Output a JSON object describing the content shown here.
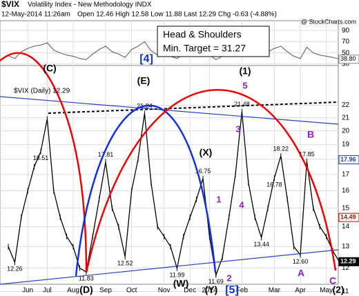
{
  "header": {
    "symbol": "$VIX",
    "name": "Volatility Index - New Methodology INDX",
    "date": "12-May-2014 11:26am",
    "quote": "Open 12.46 High 12.58 Low 11.88 Last 12.29 Chg -0.63 (-4.88%)",
    "source": "@ StockCharts.com",
    "legend": "$VIX (Daily) 12.29",
    "box": [
      "Head & Shoulders",
      "Min. Target = 31.27"
    ]
  },
  "chart_data": {
    "type": "line",
    "log_scale": true,
    "grid": true,
    "color": "#000000",
    "categories": [
      null,
      null,
      null,
      "Jun",
      null,
      null,
      "Jul",
      null,
      null,
      null,
      "Aug",
      null,
      null,
      null,
      null,
      "Sep",
      null,
      null,
      null,
      "Oct",
      null,
      null,
      null,
      null,
      "Nov",
      null,
      null,
      null,
      "Dec",
      null,
      null,
      "2014",
      null,
      null,
      null,
      null,
      "Feb",
      null,
      null,
      null,
      null,
      "Mar",
      null,
      null,
      null,
      "Apr",
      null,
      null,
      null,
      "May",
      null,
      null
    ],
    "values": [
      13.0,
      12.26,
      14.5,
      16.0,
      17.5,
      18.51,
      20.9,
      16.0,
      14.5,
      13.5,
      13.0,
      12.0,
      11.83,
      13.5,
      15.5,
      17.81,
      15.0,
      14.0,
      12.52,
      16.0,
      18.0,
      21.34,
      16.5,
      14.0,
      13.5,
      13.0,
      11.99,
      13.5,
      14.5,
      15.5,
      16.75,
      13.5,
      11.69,
      12.5,
      14.5,
      17.0,
      21.48,
      16.5,
      14.5,
      13.44,
      15.0,
      16.78,
      18.22,
      15.5,
      13.0,
      12.6,
      17.85,
      15.0,
      14.0,
      13.5,
      12.8,
      12.29
    ],
    "value_labels": [
      null,
      "12.26",
      null,
      null,
      null,
      "18.51",
      null,
      null,
      null,
      null,
      null,
      null,
      "11.83",
      null,
      null,
      "17.81",
      null,
      null,
      "12.52",
      null,
      null,
      "21.34",
      null,
      null,
      null,
      null,
      "11.99",
      null,
      null,
      null,
      "16.75",
      null,
      "11.69",
      null,
      null,
      null,
      "21.48",
      null,
      null,
      "13.44",
      null,
      "16.78",
      "18.22",
      null,
      null,
      "12.60",
      "17.85",
      null,
      null,
      null,
      null,
      null
    ],
    "ylim": [
      11.3,
      25.5
    ],
    "yticks": [
      11,
      12,
      13,
      14,
      15,
      16,
      17,
      18,
      19,
      20,
      21,
      22
    ],
    "markers": [
      {
        "value": 17.96,
        "color": "#1f3fbf"
      },
      {
        "value": 14.49,
        "color": "#cc0000"
      },
      {
        "value": 12.29,
        "color": "#000000"
      }
    ],
    "rsi": {
      "values": [
        45,
        40,
        52,
        58,
        62,
        64,
        68,
        55,
        50,
        46,
        44,
        40,
        38,
        48,
        56,
        62,
        52,
        48,
        42,
        56,
        62,
        70,
        54,
        46,
        45,
        44,
        40,
        48,
        52,
        56,
        60,
        46,
        38,
        44,
        52,
        60,
        70,
        54,
        48,
        44,
        52,
        58,
        62,
        52,
        44,
        40,
        60,
        50,
        46,
        44,
        42,
        38.8
      ],
      "color": "#555555",
      "ylim": [
        25,
        100
      ],
      "yticks": [
        30,
        50,
        70,
        90
      ],
      "last": {
        "value": 38.8,
        "label": "38.80"
      }
    },
    "wave_labels": [
      "(C)",
      "(D)",
      "(E)",
      "[4]",
      "(X)",
      "(W)",
      "(Y)",
      "[5]",
      "(1)",
      "(2)",
      "5",
      "3",
      "1",
      "4",
      "2",
      "B",
      "A",
      "C"
    ]
  }
}
